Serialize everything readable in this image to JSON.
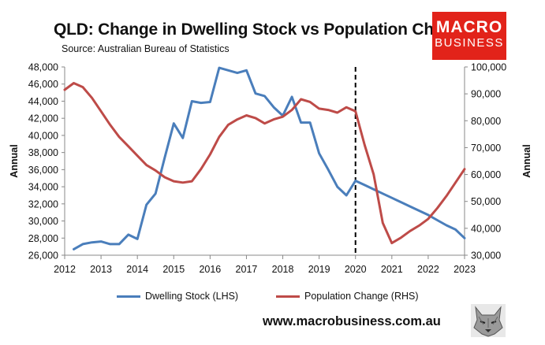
{
  "header": {
    "title": "QLD: Change in Dwelling Stock vs Population Change",
    "source": "Source: Australian Bureau of Statistics"
  },
  "logo": {
    "line1": "MACRO",
    "line2": "BUSINESS"
  },
  "footer": {
    "website": "www.macrobusiness.com.au"
  },
  "colors": {
    "dwelling": "#4a7ebb",
    "population": "#be4b48",
    "marker": "#000000",
    "logo": "#e2231a"
  },
  "chart_data": {
    "type": "line",
    "title": "QLD: Change in Dwelling Stock vs Population Change",
    "x_ticks": [
      2012,
      2013,
      2014,
      2015,
      2016,
      2017,
      2018,
      2019,
      2020,
      2021,
      2022,
      2023
    ],
    "x_tick_labels": [
      "2012",
      "2013",
      "2014",
      "2015",
      "2016",
      "2017",
      "2018",
      "2019",
      "2020",
      "2021",
      "2022",
      "2023"
    ],
    "xlim": [
      2012,
      2023
    ],
    "left_axis": {
      "label": "Annual",
      "ylim": [
        26000,
        48000
      ],
      "ticks": [
        26000,
        28000,
        30000,
        32000,
        34000,
        36000,
        38000,
        40000,
        42000,
        44000,
        46000,
        48000
      ],
      "tick_labels": [
        "26,000",
        "28,000",
        "30,000",
        "32,000",
        "34,000",
        "36,000",
        "38,000",
        "40,000",
        "42,000",
        "44,000",
        "46,000",
        "48,000"
      ]
    },
    "right_axis": {
      "label": "Annual",
      "ylim": [
        30000,
        100000
      ],
      "ticks": [
        30000,
        40000,
        50000,
        60000,
        70000,
        80000,
        90000,
        100000
      ],
      "tick_labels": [
        "30,000",
        "40,000",
        "50,000",
        "60,000",
        "70,000",
        "80,000",
        "90,000",
        "100,000"
      ]
    },
    "vertical_marker": {
      "x": 2020.0,
      "style": "dashed"
    },
    "series": [
      {
        "name": "Dwelling Stock (LHS)",
        "axis": "left",
        "x": [
          2012.25,
          2012.5,
          2012.75,
          2013.0,
          2013.25,
          2013.5,
          2013.75,
          2014.0,
          2014.25,
          2014.5,
          2014.75,
          2015.0,
          2015.25,
          2015.5,
          2015.75,
          2016.0,
          2016.25,
          2016.5,
          2016.75,
          2017.0,
          2017.25,
          2017.5,
          2017.75,
          2018.0,
          2018.25,
          2018.5,
          2018.75,
          2019.0,
          2019.25,
          2019.5,
          2019.75,
          2020.0,
          2020.25,
          2020.5,
          2020.75,
          2021.0,
          2021.25,
          2021.5,
          2021.75,
          2022.0,
          2022.25,
          2022.5,
          2022.75,
          2023.0
        ],
        "values": [
          26700,
          27300,
          27500,
          27600,
          27300,
          27300,
          28400,
          27900,
          31900,
          33200,
          37400,
          41400,
          39700,
          44000,
          43800,
          43900,
          47900,
          47600,
          47300,
          47600,
          44900,
          44600,
          43300,
          42300,
          44500,
          41500,
          41500,
          37900,
          36000,
          34000,
          33000,
          34700,
          34200,
          33700,
          33200,
          32700,
          32200,
          31700,
          31200,
          30700,
          30100,
          29500,
          29000,
          28000
        ]
      },
      {
        "name": "Population Change (RHS)",
        "axis": "right",
        "x": [
          2012.0,
          2012.25,
          2012.5,
          2012.75,
          2013.0,
          2013.25,
          2013.5,
          2013.75,
          2014.0,
          2014.25,
          2014.5,
          2014.75,
          2015.0,
          2015.25,
          2015.5,
          2015.75,
          2016.0,
          2016.25,
          2016.5,
          2016.75,
          2017.0,
          2017.25,
          2017.5,
          2017.75,
          2018.0,
          2018.25,
          2018.5,
          2018.75,
          2019.0,
          2019.25,
          2019.5,
          2019.75,
          2020.0,
          2020.25,
          2020.5,
          2020.75,
          2021.0,
          2021.25,
          2021.5,
          2021.75,
          2022.0,
          2022.25,
          2022.5,
          2022.75,
          2023.0
        ],
        "values": [
          91500,
          94000,
          92500,
          88500,
          83500,
          78500,
          74000,
          70500,
          67000,
          63500,
          61500,
          59000,
          57500,
          57000,
          57500,
          62000,
          67500,
          74000,
          78500,
          80500,
          82000,
          81000,
          79000,
          80500,
          81500,
          84000,
          88000,
          87000,
          84500,
          84000,
          83000,
          85000,
          83500,
          71000,
          60000,
          42000,
          34500,
          36500,
          39000,
          41000,
          43500,
          47500,
          52000,
          57000,
          62000
        ]
      }
    ]
  }
}
